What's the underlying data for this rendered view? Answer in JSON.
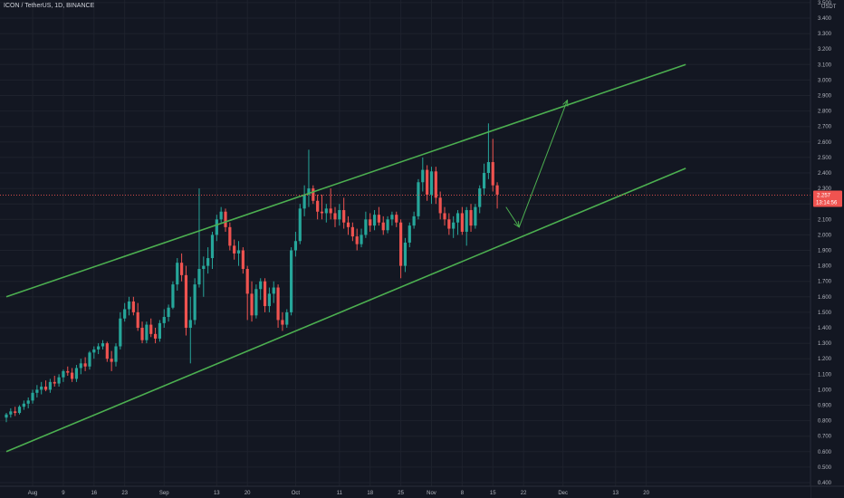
{
  "header": {
    "symbol_line": "ICON / TetherUS, 1D, BINANCE"
  },
  "colors": {
    "background": "#131722",
    "up": "#26a69a",
    "down": "#ef5350",
    "channel": "#4caf50",
    "grid": "#1e222d",
    "text": "#b2b5be"
  },
  "chart_data": {
    "type": "candlestick",
    "title": "ICON / TetherUS, 1D, BINANCE",
    "y_axis": {
      "unit_label": "USDT",
      "ylim": [
        0.4,
        3.5
      ],
      "ticks": [
        0.4,
        0.5,
        0.6,
        0.7,
        0.8,
        0.9,
        1.0,
        1.1,
        1.2,
        1.3,
        1.4,
        1.5,
        1.6,
        1.7,
        1.8,
        1.9,
        2.0,
        2.1,
        2.2,
        2.3,
        2.4,
        2.5,
        2.6,
        2.7,
        2.8,
        2.9,
        3.0,
        3.1,
        3.2,
        3.3,
        3.4,
        3.5
      ],
      "tick_labels": [
        "0.400",
        "0.500",
        "0.600",
        "0.700",
        "0.800",
        "0.900",
        "1.000",
        "1.100",
        "1.200",
        "1.300",
        "1.400",
        "1.500",
        "1.600",
        "1.700",
        "1.800",
        "1.900",
        "2.000",
        "2.100",
        "2.200",
        "2.300",
        "2.400",
        "2.500",
        "2.600",
        "2.700",
        "2.800",
        "2.900",
        "3.000",
        "3.100",
        "3.200",
        "3.300",
        "3.400",
        "3.500"
      ]
    },
    "x_axis": {
      "tick_labels": [
        "Aug",
        "9",
        "16",
        "23",
        "Sep",
        "13",
        "20",
        "Oct",
        "11",
        "18",
        "25",
        "Nov",
        "8",
        "15",
        "22",
        "Dec",
        "13",
        "20"
      ]
    },
    "current_price": "2.257",
    "countdown": "13:14:56",
    "grid": true,
    "candles": [
      {
        "date": "Jul 27",
        "o": 0.82,
        "h": 0.85,
        "l": 0.79,
        "c": 0.84
      },
      {
        "date": "Jul 28",
        "o": 0.84,
        "h": 0.88,
        "l": 0.82,
        "c": 0.86
      },
      {
        "date": "Jul 29",
        "o": 0.86,
        "h": 0.89,
        "l": 0.83,
        "c": 0.85
      },
      {
        "date": "Jul 30",
        "o": 0.85,
        "h": 0.9,
        "l": 0.84,
        "c": 0.89
      },
      {
        "date": "Jul 31",
        "o": 0.89,
        "h": 0.93,
        "l": 0.87,
        "c": 0.91
      },
      {
        "date": "Aug 1",
        "o": 0.91,
        "h": 0.95,
        "l": 0.88,
        "c": 0.93
      },
      {
        "date": "Aug 2",
        "o": 0.93,
        "h": 1.0,
        "l": 0.91,
        "c": 0.98
      },
      {
        "date": "Aug 3",
        "o": 0.98,
        "h": 1.03,
        "l": 0.95,
        "c": 1.0
      },
      {
        "date": "Aug 4",
        "o": 1.0,
        "h": 1.05,
        "l": 0.97,
        "c": 1.02
      },
      {
        "date": "Aug 5",
        "o": 1.02,
        "h": 1.06,
        "l": 0.99,
        "c": 1.0
      },
      {
        "date": "Aug 6",
        "o": 1.0,
        "h": 1.07,
        "l": 0.98,
        "c": 1.05
      },
      {
        "date": "Aug 7",
        "o": 1.05,
        "h": 1.09,
        "l": 1.02,
        "c": 1.04
      },
      {
        "date": "Aug 8",
        "o": 1.04,
        "h": 1.1,
        "l": 1.02,
        "c": 1.08
      },
      {
        "date": "Aug 9",
        "o": 1.08,
        "h": 1.13,
        "l": 1.05,
        "c": 1.12
      },
      {
        "date": "Aug 10",
        "o": 1.12,
        "h": 1.15,
        "l": 1.09,
        "c": 1.11
      },
      {
        "date": "Aug 11",
        "o": 1.11,
        "h": 1.14,
        "l": 1.05,
        "c": 1.07
      },
      {
        "date": "Aug 12",
        "o": 1.07,
        "h": 1.16,
        "l": 1.05,
        "c": 1.14
      },
      {
        "date": "Aug 13",
        "o": 1.14,
        "h": 1.2,
        "l": 1.1,
        "c": 1.17
      },
      {
        "date": "Aug 14",
        "o": 1.17,
        "h": 1.21,
        "l": 1.12,
        "c": 1.15
      },
      {
        "date": "Aug 15",
        "o": 1.15,
        "h": 1.25,
        "l": 1.13,
        "c": 1.24
      },
      {
        "date": "Aug 16",
        "o": 1.24,
        "h": 1.28,
        "l": 1.2,
        "c": 1.26
      },
      {
        "date": "Aug 17",
        "o": 1.26,
        "h": 1.3,
        "l": 1.23,
        "c": 1.28
      },
      {
        "date": "Aug 18",
        "o": 1.28,
        "h": 1.32,
        "l": 1.26,
        "c": 1.3
      },
      {
        "date": "Aug 19",
        "o": 1.3,
        "h": 1.31,
        "l": 1.18,
        "c": 1.2
      },
      {
        "date": "Aug 20",
        "o": 1.2,
        "h": 1.25,
        "l": 1.12,
        "c": 1.18
      },
      {
        "date": "Aug 21",
        "o": 1.18,
        "h": 1.3,
        "l": 1.15,
        "c": 1.28
      },
      {
        "date": "Aug 22",
        "o": 1.28,
        "h": 1.5,
        "l": 1.26,
        "c": 1.46
      },
      {
        "date": "Aug 23",
        "o": 1.46,
        "h": 1.56,
        "l": 1.44,
        "c": 1.52
      },
      {
        "date": "Aug 24",
        "o": 1.52,
        "h": 1.6,
        "l": 1.48,
        "c": 1.57
      },
      {
        "date": "Aug 25",
        "o": 1.57,
        "h": 1.6,
        "l": 1.48,
        "c": 1.5
      },
      {
        "date": "Aug 26",
        "o": 1.5,
        "h": 1.56,
        "l": 1.38,
        "c": 1.4
      },
      {
        "date": "Aug 27",
        "o": 1.4,
        "h": 1.44,
        "l": 1.3,
        "c": 1.32
      },
      {
        "date": "Aug 28",
        "o": 1.32,
        "h": 1.44,
        "l": 1.3,
        "c": 1.42
      },
      {
        "date": "Aug 29",
        "o": 1.42,
        "h": 1.46,
        "l": 1.34,
        "c": 1.36
      },
      {
        "date": "Aug 30",
        "o": 1.36,
        "h": 1.4,
        "l": 1.3,
        "c": 1.33
      },
      {
        "date": "Aug 31",
        "o": 1.33,
        "h": 1.45,
        "l": 1.31,
        "c": 1.43
      },
      {
        "date": "Sep 1",
        "o": 1.43,
        "h": 1.52,
        "l": 1.4,
        "c": 1.47
      },
      {
        "date": "Sep 2",
        "o": 1.47,
        "h": 1.55,
        "l": 1.44,
        "c": 1.53
      },
      {
        "date": "Sep 3",
        "o": 1.53,
        "h": 1.7,
        "l": 1.52,
        "c": 1.68
      },
      {
        "date": "Sep 4",
        "o": 1.68,
        "h": 1.85,
        "l": 1.64,
        "c": 1.82
      },
      {
        "date": "Sep 5",
        "o": 1.82,
        "h": 1.88,
        "l": 1.7,
        "c": 1.74
      },
      {
        "date": "Sep 6",
        "o": 1.74,
        "h": 1.8,
        "l": 1.35,
        "c": 1.4
      },
      {
        "date": "Sep 7",
        "o": 1.4,
        "h": 1.6,
        "l": 1.17,
        "c": 1.45
      },
      {
        "date": "Sep 8",
        "o": 1.45,
        "h": 1.72,
        "l": 1.42,
        "c": 1.68
      },
      {
        "date": "Sep 9",
        "o": 1.68,
        "h": 2.3,
        "l": 1.66,
        "c": 1.78
      },
      {
        "date": "Sep 10",
        "o": 1.78,
        "h": 1.86,
        "l": 1.6,
        "c": 1.8
      },
      {
        "date": "Sep 11",
        "o": 1.8,
        "h": 1.92,
        "l": 1.75,
        "c": 1.85
      },
      {
        "date": "Sep 12",
        "o": 1.85,
        "h": 2.02,
        "l": 1.78,
        "c": 2.0
      },
      {
        "date": "Sep 13",
        "o": 2.0,
        "h": 2.13,
        "l": 1.96,
        "c": 2.1
      },
      {
        "date": "Sep 14",
        "o": 2.1,
        "h": 2.18,
        "l": 2.08,
        "c": 2.15
      },
      {
        "date": "Sep 15",
        "o": 2.15,
        "h": 2.17,
        "l": 2.02,
        "c": 2.05
      },
      {
        "date": "Sep 16",
        "o": 2.05,
        "h": 2.08,
        "l": 1.9,
        "c": 1.93
      },
      {
        "date": "Sep 17",
        "o": 1.93,
        "h": 1.97,
        "l": 1.84,
        "c": 1.88
      },
      {
        "date": "Sep 18",
        "o": 1.88,
        "h": 1.96,
        "l": 1.8,
        "c": 1.9
      },
      {
        "date": "Sep 19",
        "o": 1.9,
        "h": 1.92,
        "l": 1.75,
        "c": 1.78
      },
      {
        "date": "Sep 20",
        "o": 1.78,
        "h": 1.8,
        "l": 1.45,
        "c": 1.62
      },
      {
        "date": "Sep 21",
        "o": 1.62,
        "h": 1.7,
        "l": 1.44,
        "c": 1.48
      },
      {
        "date": "Sep 22",
        "o": 1.48,
        "h": 1.68,
        "l": 1.46,
        "c": 1.65
      },
      {
        "date": "Sep 23",
        "o": 1.65,
        "h": 1.72,
        "l": 1.58,
        "c": 1.7
      },
      {
        "date": "Sep 24",
        "o": 1.7,
        "h": 1.72,
        "l": 1.5,
        "c": 1.54
      },
      {
        "date": "Sep 25",
        "o": 1.54,
        "h": 1.66,
        "l": 1.5,
        "c": 1.62
      },
      {
        "date": "Sep 26",
        "o": 1.62,
        "h": 1.7,
        "l": 1.56,
        "c": 1.66
      },
      {
        "date": "Sep 27",
        "o": 1.66,
        "h": 1.68,
        "l": 1.4,
        "c": 1.45
      },
      {
        "date": "Sep 28",
        "o": 1.45,
        "h": 1.5,
        "l": 1.38,
        "c": 1.42
      },
      {
        "date": "Sep 29",
        "o": 1.42,
        "h": 1.52,
        "l": 1.4,
        "c": 1.5
      },
      {
        "date": "Sep 30",
        "o": 1.5,
        "h": 1.92,
        "l": 1.48,
        "c": 1.9
      },
      {
        "date": "Oct 1",
        "o": 1.9,
        "h": 2.02,
        "l": 1.86,
        "c": 1.96
      },
      {
        "date": "Oct 2",
        "o": 1.96,
        "h": 2.2,
        "l": 1.94,
        "c": 2.17
      },
      {
        "date": "Oct 3",
        "o": 2.17,
        "h": 2.32,
        "l": 2.12,
        "c": 2.26
      },
      {
        "date": "Oct 4",
        "o": 2.26,
        "h": 2.55,
        "l": 2.18,
        "c": 2.3
      },
      {
        "date": "Oct 5",
        "o": 2.3,
        "h": 2.32,
        "l": 2.2,
        "c": 2.22
      },
      {
        "date": "Oct 6",
        "o": 2.22,
        "h": 2.26,
        "l": 2.1,
        "c": 2.15
      },
      {
        "date": "Oct 7",
        "o": 2.15,
        "h": 2.26,
        "l": 2.1,
        "c": 2.14
      },
      {
        "date": "Oct 8",
        "o": 2.14,
        "h": 2.2,
        "l": 2.08,
        "c": 2.17
      },
      {
        "date": "Oct 9",
        "o": 2.17,
        "h": 2.3,
        "l": 2.1,
        "c": 2.14
      },
      {
        "date": "Oct 10",
        "o": 2.14,
        "h": 2.18,
        "l": 2.05,
        "c": 2.1
      },
      {
        "date": "Oct 11",
        "o": 2.1,
        "h": 2.2,
        "l": 2.06,
        "c": 2.16
      },
      {
        "date": "Oct 12",
        "o": 2.16,
        "h": 2.24,
        "l": 2.04,
        "c": 2.08
      },
      {
        "date": "Oct 13",
        "o": 2.08,
        "h": 2.12,
        "l": 2.0,
        "c": 2.05
      },
      {
        "date": "Oct 14",
        "o": 2.05,
        "h": 2.08,
        "l": 1.96,
        "c": 1.99
      },
      {
        "date": "Oct 15",
        "o": 1.99,
        "h": 2.04,
        "l": 1.9,
        "c": 1.94
      },
      {
        "date": "Oct 16",
        "o": 1.94,
        "h": 2.04,
        "l": 1.92,
        "c": 2.0
      },
      {
        "date": "Oct 17",
        "o": 2.0,
        "h": 2.15,
        "l": 1.98,
        "c": 2.1
      },
      {
        "date": "Oct 18",
        "o": 2.1,
        "h": 2.14,
        "l": 2.02,
        "c": 2.06
      },
      {
        "date": "Oct 19",
        "o": 2.06,
        "h": 2.16,
        "l": 2.03,
        "c": 2.13
      },
      {
        "date": "Oct 20",
        "o": 2.13,
        "h": 2.18,
        "l": 2.06,
        "c": 2.08
      },
      {
        "date": "Oct 21",
        "o": 2.08,
        "h": 2.12,
        "l": 2.0,
        "c": 2.03
      },
      {
        "date": "Oct 22",
        "o": 2.03,
        "h": 2.12,
        "l": 2.01,
        "c": 2.1
      },
      {
        "date": "Oct 23",
        "o": 2.1,
        "h": 2.15,
        "l": 2.06,
        "c": 2.13
      },
      {
        "date": "Oct 24",
        "o": 2.13,
        "h": 2.15,
        "l": 2.05,
        "c": 2.08
      },
      {
        "date": "Oct 25",
        "o": 2.08,
        "h": 2.1,
        "l": 1.72,
        "c": 1.8
      },
      {
        "date": "Oct 26",
        "o": 1.8,
        "h": 1.98,
        "l": 1.76,
        "c": 1.95
      },
      {
        "date": "Oct 27",
        "o": 1.95,
        "h": 2.08,
        "l": 1.92,
        "c": 2.06
      },
      {
        "date": "Oct 28",
        "o": 2.06,
        "h": 2.15,
        "l": 2.04,
        "c": 2.12
      },
      {
        "date": "Oct 29",
        "o": 2.12,
        "h": 2.36,
        "l": 2.1,
        "c": 2.34
      },
      {
        "date": "Oct 30",
        "o": 2.34,
        "h": 2.5,
        "l": 2.28,
        "c": 2.42
      },
      {
        "date": "Oct 31",
        "o": 2.42,
        "h": 2.45,
        "l": 2.22,
        "c": 2.26
      },
      {
        "date": "Nov 1",
        "o": 2.26,
        "h": 2.44,
        "l": 2.2,
        "c": 2.41
      },
      {
        "date": "Nov 2",
        "o": 2.41,
        "h": 2.44,
        "l": 2.2,
        "c": 2.24
      },
      {
        "date": "Nov 3",
        "o": 2.24,
        "h": 2.28,
        "l": 2.1,
        "c": 2.14
      },
      {
        "date": "Nov 4",
        "o": 2.14,
        "h": 2.18,
        "l": 2.06,
        "c": 2.1
      },
      {
        "date": "Nov 5",
        "o": 2.1,
        "h": 2.14,
        "l": 2.0,
        "c": 2.04
      },
      {
        "date": "Nov 6",
        "o": 2.04,
        "h": 2.12,
        "l": 1.98,
        "c": 2.08
      },
      {
        "date": "Nov 7",
        "o": 2.08,
        "h": 2.16,
        "l": 2.0,
        "c": 2.14
      },
      {
        "date": "Nov 8",
        "o": 2.14,
        "h": 2.18,
        "l": 2.0,
        "c": 2.02
      },
      {
        "date": "Nov 9",
        "o": 2.02,
        "h": 2.18,
        "l": 1.93,
        "c": 2.16
      },
      {
        "date": "Nov 10",
        "o": 2.16,
        "h": 2.2,
        "l": 2.02,
        "c": 2.06
      },
      {
        "date": "Nov 11",
        "o": 2.06,
        "h": 2.2,
        "l": 2.04,
        "c": 2.18
      },
      {
        "date": "Nov 12",
        "o": 2.18,
        "h": 2.32,
        "l": 2.14,
        "c": 2.3
      },
      {
        "date": "Nov 13",
        "o": 2.3,
        "h": 2.46,
        "l": 2.26,
        "c": 2.4
      },
      {
        "date": "Nov 14",
        "o": 2.4,
        "h": 2.72,
        "l": 2.36,
        "c": 2.47
      },
      {
        "date": "Nov 15",
        "o": 2.47,
        "h": 2.62,
        "l": 2.28,
        "c": 2.32
      },
      {
        "date": "Nov 16",
        "o": 2.32,
        "h": 2.34,
        "l": 2.17,
        "c": 2.26
      }
    ],
    "annotations": [
      {
        "kind": "trendline",
        "name": "upper-channel",
        "points": [
          {
            "date": "Jul 27",
            "price": 1.6
          },
          {
            "date": "Dec 29",
            "price": 3.1
          }
        ]
      },
      {
        "kind": "trendline",
        "name": "lower-channel",
        "points": [
          {
            "date": "Jul 27",
            "price": 0.6
          },
          {
            "date": "Dec 29",
            "price": 2.43
          }
        ]
      },
      {
        "kind": "arrow",
        "name": "projection-down",
        "from": {
          "date": "Nov 18",
          "price": 2.18
        },
        "to": {
          "date": "Nov 21",
          "price": 2.05
        }
      },
      {
        "kind": "arrow",
        "name": "projection-up",
        "from": {
          "date": "Nov 21",
          "price": 2.05
        },
        "to": {
          "date": "Dec 2",
          "price": 2.87
        }
      }
    ]
  }
}
